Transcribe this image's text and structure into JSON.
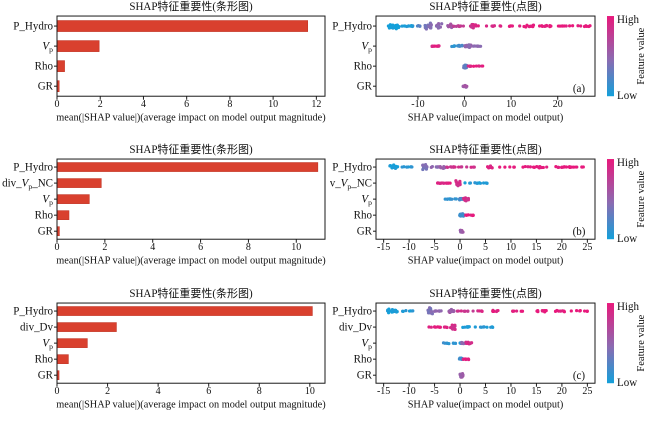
{
  "colors": {
    "bar_fill": "#d9402e",
    "bar_edge": "#c23526",
    "low": "#13a0da",
    "mid": "#8a6cb2",
    "high": "#e8197c",
    "axis": "#1a1a1a"
  },
  "colorbar": {
    "high": "High",
    "low": "Low",
    "title": "Feature value"
  },
  "chart_data": [
    {
      "id": "bar-a",
      "type": "bar",
      "title": "SHAP特征重要性(条形图)",
      "xlabel": "mean(|SHAP value|)(average impact on model output magnitude)",
      "categories": [
        "P_Hydro",
        "*V*~p~",
        "Rho",
        "GR"
      ],
      "values": [
        11.6,
        1.95,
        0.35,
        0.1
      ],
      "xticks": [
        0,
        2,
        4,
        6,
        8,
        10,
        12
      ],
      "xlim": [
        0,
        12.4
      ]
    },
    {
      "id": "dot-a",
      "type": "beeswarm",
      "title": "SHAP特征重要性(点图)",
      "xlabel": "SHAP value(impact on model output)",
      "panel_label": "(a)",
      "categories": [
        "P_Hydro",
        "*V*~p~",
        "Rho",
        "GR"
      ],
      "xticks": [
        -10,
        0,
        10,
        20
      ],
      "xlim": [
        -19,
        28
      ],
      "clusters": [
        [
          [
            -15.3,
            1.3,
            3.2,
            26,
            0
          ],
          [
            -12.3,
            1.6,
            0.8,
            10,
            0.05
          ],
          [
            -9.8,
            0.5,
            1.2,
            5,
            0.3
          ],
          [
            -7.8,
            0.7,
            4.6,
            18,
            0.45
          ],
          [
            -5.4,
            0.7,
            3.0,
            13,
            0.5
          ],
          [
            -3.2,
            0.7,
            2.2,
            10,
            0.62
          ],
          [
            -1.3,
            1.2,
            0.7,
            8,
            0.78
          ],
          [
            1.8,
            0.7,
            2.4,
            10,
            0.88
          ],
          [
            4.5,
            2.0,
            0.5,
            6,
            0.92
          ],
          [
            9.5,
            3.0,
            0.5,
            7,
            0.97
          ],
          [
            13.7,
            1.2,
            1.5,
            9,
            1
          ],
          [
            17.3,
            1.2,
            1.4,
            9,
            1
          ],
          [
            21.5,
            3.5,
            0.6,
            12,
            1
          ],
          [
            25.8,
            1.5,
            0.8,
            6,
            1
          ]
        ],
        [
          [
            -5.3,
            1.8,
            0.5,
            12,
            0.95
          ],
          [
            -2.2,
            0.9,
            0.7,
            8,
            0.12
          ],
          [
            -0.8,
            0.5,
            1.4,
            7,
            0.2
          ],
          [
            0.7,
            0.8,
            3.2,
            20,
            0.55
          ],
          [
            2.8,
            1.3,
            0.6,
            8,
            0.5
          ]
        ],
        [
          [
            0.1,
            0.35,
            2.8,
            15,
            0.35
          ],
          [
            2.3,
            1.8,
            0.4,
            11,
            0.95
          ]
        ],
        [
          [
            0.1,
            0.4,
            2.4,
            14,
            0.6
          ]
        ]
      ]
    },
    {
      "id": "bar-b",
      "type": "bar",
      "title": "SHAP特征重要性(条形图)",
      "xlabel": "mean(|SHAP value|)(average impact on model output magnitude)",
      "categories": [
        "P_Hydro",
        "div_*V*~p~_NC",
        "*V*~p~",
        "Rho",
        "GR"
      ],
      "values": [
        10.9,
        1.85,
        1.35,
        0.5,
        0.1
      ],
      "xticks": [
        0,
        2,
        4,
        6,
        8,
        10
      ],
      "xlim": [
        0,
        11.2
      ]
    },
    {
      "id": "dot-b",
      "type": "beeswarm",
      "title": "SHAP特征重要性(点图)",
      "xlabel": "SHAP value(impact on model output)",
      "panel_label": "(b)",
      "categories": [
        "P_Hydro",
        "div_*V*~p~_NC",
        "*V*~p~",
        "Rho",
        "GR"
      ],
      "xticks": [
        -15,
        -10,
        -5,
        0,
        5,
        10,
        15,
        20,
        25
      ],
      "xlim": [
        -16.5,
        26.5
      ],
      "clusters": [
        [
          [
            -13.1,
            0.9,
            2.6,
            18,
            0
          ],
          [
            -10.6,
            1.2,
            0.6,
            8,
            0.07
          ],
          [
            -6.9,
            0.5,
            4.6,
            16,
            0.45
          ],
          [
            -5.0,
            0.8,
            0.8,
            7,
            0.5
          ],
          [
            -3.5,
            0.6,
            2.0,
            8,
            0.58
          ],
          [
            -2.0,
            1.0,
            0.5,
            8,
            0.8
          ],
          [
            0.5,
            2.3,
            0.5,
            8,
            0.85
          ],
          [
            5.9,
            0.5,
            1.6,
            7,
            0.93
          ],
          [
            9.5,
            1.8,
            0.4,
            5,
            1
          ],
          [
            13.5,
            1.2,
            0.8,
            6,
            1
          ],
          [
            15.8,
            1.3,
            1.3,
            9,
            1
          ],
          [
            19.5,
            1.5,
            1.3,
            9,
            1
          ],
          [
            23.2,
            1.8,
            0.6,
            10,
            1
          ]
        ],
        [
          [
            -3.0,
            1.9,
            0.5,
            13,
            0.95
          ],
          [
            -0.4,
            0.45,
            3.6,
            15,
            0.88
          ],
          [
            3.0,
            2.6,
            0.5,
            15,
            0.06
          ]
        ],
        [
          [
            -1.8,
            1.3,
            0.5,
            11,
            0.12
          ],
          [
            0.3,
            0.5,
            1.5,
            8,
            0.25
          ],
          [
            1.1,
            0.6,
            2.4,
            15,
            0.9
          ]
        ],
        [
          [
            0.3,
            0.4,
            2.1,
            13,
            0.18
          ],
          [
            1.7,
            0.9,
            0.5,
            9,
            0.95
          ]
        ],
        [
          [
            0.3,
            0.3,
            2.5,
            13,
            0.6
          ]
        ]
      ]
    },
    {
      "id": "bar-c",
      "type": "bar",
      "title": "SHAP特征重要性(条形图)",
      "xlabel": "mean(|SHAP value|)(average impact on model output magnitude)",
      "categories": [
        "P_Hydro",
        "div_Dv",
        "*V*~p~",
        "Rho",
        "GR"
      ],
      "values": [
        10.1,
        2.35,
        1.2,
        0.45,
        0.08
      ],
      "xticks": [
        0,
        2,
        4,
        6,
        8,
        10
      ],
      "xlim": [
        0,
        10.6
      ]
    },
    {
      "id": "dot-c",
      "type": "beeswarm",
      "title": "SHAP特征重要性(点图)",
      "xlabel": "SHAP value(impact on model output)",
      "panel_label": "(c)",
      "categories": [
        "P_Hydro",
        "div_Dv",
        "*V*~p~",
        "Rho",
        "GR"
      ],
      "xticks": [
        -15,
        -10,
        -5,
        0,
        5,
        10,
        15,
        20,
        25
      ],
      "xlim": [
        -16.5,
        26.5
      ],
      "clusters": [
        [
          [
            -13.3,
            1.0,
            2.6,
            18,
            0
          ],
          [
            -10.3,
            1.3,
            0.6,
            8,
            0.07
          ],
          [
            -5.9,
            0.5,
            4.4,
            16,
            0.45
          ],
          [
            -4.3,
            0.8,
            0.7,
            7,
            0.55
          ],
          [
            -1.7,
            0.5,
            3.0,
            13,
            0.6
          ],
          [
            0.9,
            1.8,
            0.5,
            8,
            0.85
          ],
          [
            4.0,
            0.8,
            0.5,
            5,
            0.9
          ],
          [
            7.0,
            0.6,
            1.6,
            7,
            0.95
          ],
          [
            11.5,
            1.5,
            0.5,
            6,
            1
          ],
          [
            15.8,
            1.8,
            1.0,
            9,
            1
          ],
          [
            20.3,
            1.8,
            1.0,
            9,
            1
          ],
          [
            24.0,
            1.2,
            0.6,
            6,
            1
          ]
        ],
        [
          [
            -4.2,
            1.9,
            0.5,
            13,
            0.95
          ],
          [
            -1.4,
            0.45,
            3.6,
            15,
            0.88
          ],
          [
            3.5,
            3.0,
            0.5,
            17,
            0.06
          ]
        ],
        [
          [
            -1.6,
            1.8,
            0.5,
            13,
            0.12
          ],
          [
            0.7,
            0.5,
            1.6,
            8,
            0.5
          ],
          [
            1.6,
            0.7,
            2.2,
            13,
            0.92
          ]
        ],
        [
          [
            0.1,
            0.35,
            2.2,
            13,
            0.18
          ],
          [
            1.3,
            0.7,
            0.5,
            8,
            0.95
          ]
        ],
        [
          [
            0.3,
            0.3,
            2.5,
            13,
            0.6
          ]
        ]
      ]
    }
  ]
}
